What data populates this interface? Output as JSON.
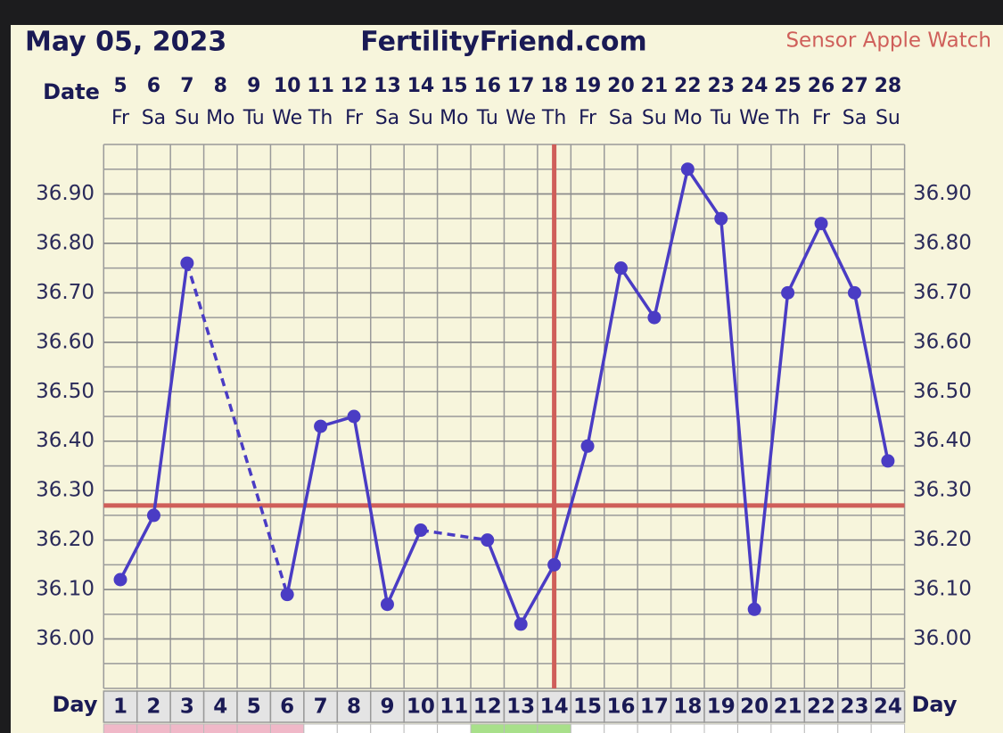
{
  "chart_data": {
    "type": "line",
    "date": "May 05, 2023",
    "title": "FertilityFriend.com",
    "source": "Sensor Apple Watch",
    "date_label": "Date",
    "day_label": "Day",
    "dates": [
      5,
      6,
      7,
      8,
      9,
      10,
      11,
      12,
      13,
      14,
      15,
      16,
      17,
      18,
      19,
      20,
      21,
      22,
      23,
      24,
      25,
      26,
      27,
      28
    ],
    "weekdays": [
      "Fr",
      "Sa",
      "Su",
      "Mo",
      "Tu",
      "We",
      "Th",
      "Fr",
      "Sa",
      "Su",
      "Mo",
      "Tu",
      "We",
      "Th",
      "Fr",
      "Sa",
      "Su",
      "Mo",
      "Tu",
      "We",
      "Th",
      "Fr",
      "Sa",
      "Su"
    ],
    "categories": [
      1,
      2,
      3,
      4,
      5,
      6,
      7,
      8,
      9,
      10,
      11,
      12,
      13,
      14,
      15,
      16,
      17,
      18,
      19,
      20,
      21,
      22,
      23,
      24
    ],
    "values": [
      36.12,
      36.25,
      36.76,
      null,
      null,
      36.09,
      36.43,
      36.45,
      36.07,
      36.22,
      null,
      36.2,
      36.03,
      36.15,
      36.39,
      36.75,
      36.65,
      36.95,
      36.85,
      36.06,
      36.7,
      36.84,
      36.7,
      36.36
    ],
    "color": "#4a3cc4",
    "coverline": 36.27,
    "ovulation_day": 14,
    "marker_color": "#cf5f5a",
    "ylim": [
      35.9,
      37.0
    ],
    "yticks": [
      {
        "value": 36.0,
        "label": "36.00"
      },
      {
        "value": 36.1,
        "label": "36.10"
      },
      {
        "value": 36.2,
        "label": "36.20"
      },
      {
        "value": 36.3,
        "label": "36.30"
      },
      {
        "value": 36.4,
        "label": "36.40"
      },
      {
        "value": 36.5,
        "label": "36.50"
      },
      {
        "value": 36.6,
        "label": "36.60"
      },
      {
        "value": 36.7,
        "label": "36.70"
      },
      {
        "value": 36.8,
        "label": "36.80"
      },
      {
        "value": 36.9,
        "label": "36.90"
      }
    ],
    "grid": true
  }
}
